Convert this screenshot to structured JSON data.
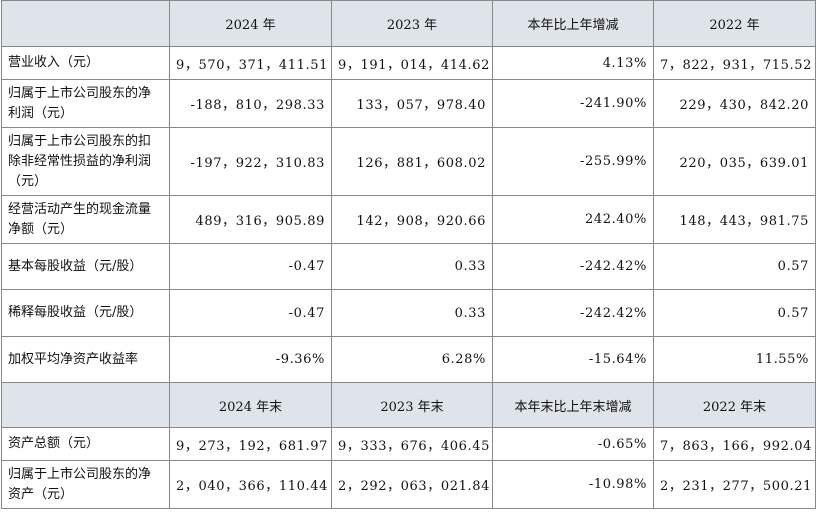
{
  "header1": {
    "cols": [
      "2024 年",
      "2023 年",
      "本年比上年增减",
      "2022 年"
    ]
  },
  "rows1": [
    {
      "label": "营业收入（元）",
      "values": [
        "9，570，371，411.51",
        "9，191，014，414.62",
        "4.13%",
        "7，822，931，715.52"
      ]
    },
    {
      "label": "归属于上市公司股东的净利润（元）",
      "values": [
        "-188，810，298.33",
        "133，057，978.40",
        "-241.90%",
        "229，430，842.20"
      ]
    },
    {
      "label": "归属于上市公司股东的扣除非经常性损益的净利润（元）",
      "values": [
        "-197，922，310.83",
        "126，881，608.02",
        "-255.99%",
        "220，035，639.01"
      ]
    },
    {
      "label": "经营活动产生的现金流量净额（元）",
      "values": [
        "489，316，905.89",
        "142，908，920.66",
        "242.40%",
        "148，443，981.75"
      ]
    },
    {
      "label": "基本每股收益（元/股）",
      "values": [
        "-0.47",
        "0.33",
        "-242.42%",
        "0.57"
      ]
    },
    {
      "label": "稀释每股收益（元/股）",
      "values": [
        "-0.47",
        "0.33",
        "-242.42%",
        "0.57"
      ]
    },
    {
      "label": "加权平均净资产收益率",
      "values": [
        "-9.36%",
        "6.28%",
        "-15.64%",
        "11.55%"
      ]
    }
  ],
  "header2": {
    "cols": [
      "2024 年末",
      "2023 年末",
      "本年末比上年末增减",
      "2022 年末"
    ]
  },
  "rows2": [
    {
      "label": "资产总额（元）",
      "values": [
        "9，273，192，681.97",
        "9，333，676，406.45",
        "-0.65%",
        "7，863，166，992.04"
      ]
    },
    {
      "label": "归属于上市公司股东的净资产（元）",
      "values": [
        "2，040，366，110.44",
        "2，292，063，021.84",
        "-10.98%",
        "2，231，277，500.21"
      ]
    }
  ]
}
